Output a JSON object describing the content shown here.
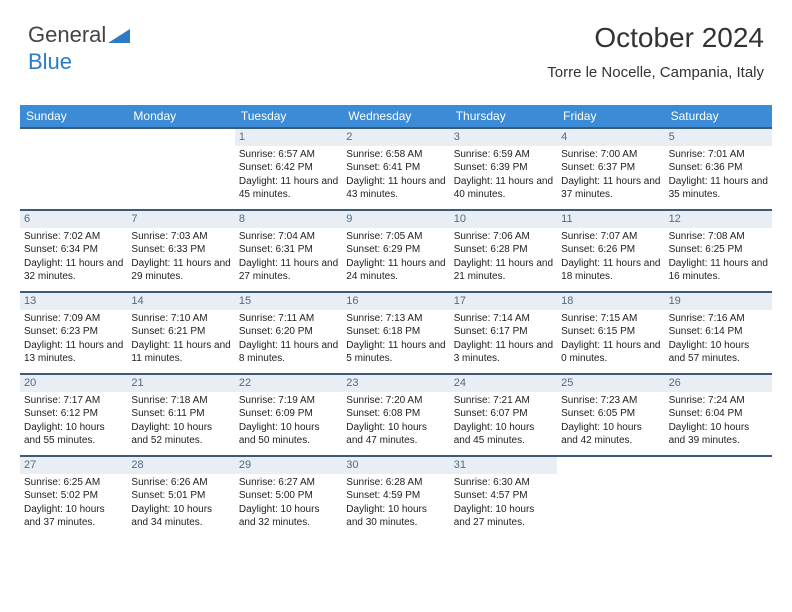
{
  "logo": {
    "part1": "General",
    "part2": "Blue",
    "tri_color": "#2b7cc4"
  },
  "header": {
    "month_year": "October 2024",
    "location": "Torre le Nocelle, Campania, Italy"
  },
  "colors": {
    "header_bar": "#3b8bd6",
    "cell_border": "#3b5a7a",
    "daynum_bg": "#e8eef4",
    "daynum_fg": "#516a85",
    "text": "#222222"
  },
  "weekdays": [
    "Sunday",
    "Monday",
    "Tuesday",
    "Wednesday",
    "Thursday",
    "Friday",
    "Saturday"
  ],
  "first_weekday_index": 2,
  "days": [
    {
      "n": 1,
      "sr": "6:57 AM",
      "ss": "6:42 PM",
      "dl": "11 hours and 45 minutes."
    },
    {
      "n": 2,
      "sr": "6:58 AM",
      "ss": "6:41 PM",
      "dl": "11 hours and 43 minutes."
    },
    {
      "n": 3,
      "sr": "6:59 AM",
      "ss": "6:39 PM",
      "dl": "11 hours and 40 minutes."
    },
    {
      "n": 4,
      "sr": "7:00 AM",
      "ss": "6:37 PM",
      "dl": "11 hours and 37 minutes."
    },
    {
      "n": 5,
      "sr": "7:01 AM",
      "ss": "6:36 PM",
      "dl": "11 hours and 35 minutes."
    },
    {
      "n": 6,
      "sr": "7:02 AM",
      "ss": "6:34 PM",
      "dl": "11 hours and 32 minutes."
    },
    {
      "n": 7,
      "sr": "7:03 AM",
      "ss": "6:33 PM",
      "dl": "11 hours and 29 minutes."
    },
    {
      "n": 8,
      "sr": "7:04 AM",
      "ss": "6:31 PM",
      "dl": "11 hours and 27 minutes."
    },
    {
      "n": 9,
      "sr": "7:05 AM",
      "ss": "6:29 PM",
      "dl": "11 hours and 24 minutes."
    },
    {
      "n": 10,
      "sr": "7:06 AM",
      "ss": "6:28 PM",
      "dl": "11 hours and 21 minutes."
    },
    {
      "n": 11,
      "sr": "7:07 AM",
      "ss": "6:26 PM",
      "dl": "11 hours and 18 minutes."
    },
    {
      "n": 12,
      "sr": "7:08 AM",
      "ss": "6:25 PM",
      "dl": "11 hours and 16 minutes."
    },
    {
      "n": 13,
      "sr": "7:09 AM",
      "ss": "6:23 PM",
      "dl": "11 hours and 13 minutes."
    },
    {
      "n": 14,
      "sr": "7:10 AM",
      "ss": "6:21 PM",
      "dl": "11 hours and 11 minutes."
    },
    {
      "n": 15,
      "sr": "7:11 AM",
      "ss": "6:20 PM",
      "dl": "11 hours and 8 minutes."
    },
    {
      "n": 16,
      "sr": "7:13 AM",
      "ss": "6:18 PM",
      "dl": "11 hours and 5 minutes."
    },
    {
      "n": 17,
      "sr": "7:14 AM",
      "ss": "6:17 PM",
      "dl": "11 hours and 3 minutes."
    },
    {
      "n": 18,
      "sr": "7:15 AM",
      "ss": "6:15 PM",
      "dl": "11 hours and 0 minutes."
    },
    {
      "n": 19,
      "sr": "7:16 AM",
      "ss": "6:14 PM",
      "dl": "10 hours and 57 minutes."
    },
    {
      "n": 20,
      "sr": "7:17 AM",
      "ss": "6:12 PM",
      "dl": "10 hours and 55 minutes."
    },
    {
      "n": 21,
      "sr": "7:18 AM",
      "ss": "6:11 PM",
      "dl": "10 hours and 52 minutes."
    },
    {
      "n": 22,
      "sr": "7:19 AM",
      "ss": "6:09 PM",
      "dl": "10 hours and 50 minutes."
    },
    {
      "n": 23,
      "sr": "7:20 AM",
      "ss": "6:08 PM",
      "dl": "10 hours and 47 minutes."
    },
    {
      "n": 24,
      "sr": "7:21 AM",
      "ss": "6:07 PM",
      "dl": "10 hours and 45 minutes."
    },
    {
      "n": 25,
      "sr": "7:23 AM",
      "ss": "6:05 PM",
      "dl": "10 hours and 42 minutes."
    },
    {
      "n": 26,
      "sr": "7:24 AM",
      "ss": "6:04 PM",
      "dl": "10 hours and 39 minutes."
    },
    {
      "n": 27,
      "sr": "6:25 AM",
      "ss": "5:02 PM",
      "dl": "10 hours and 37 minutes."
    },
    {
      "n": 28,
      "sr": "6:26 AM",
      "ss": "5:01 PM",
      "dl": "10 hours and 34 minutes."
    },
    {
      "n": 29,
      "sr": "6:27 AM",
      "ss": "5:00 PM",
      "dl": "10 hours and 32 minutes."
    },
    {
      "n": 30,
      "sr": "6:28 AM",
      "ss": "4:59 PM",
      "dl": "10 hours and 30 minutes."
    },
    {
      "n": 31,
      "sr": "6:30 AM",
      "ss": "4:57 PM",
      "dl": "10 hours and 27 minutes."
    }
  ],
  "labels": {
    "sunrise": "Sunrise: ",
    "sunset": "Sunset: ",
    "daylight": "Daylight: "
  }
}
